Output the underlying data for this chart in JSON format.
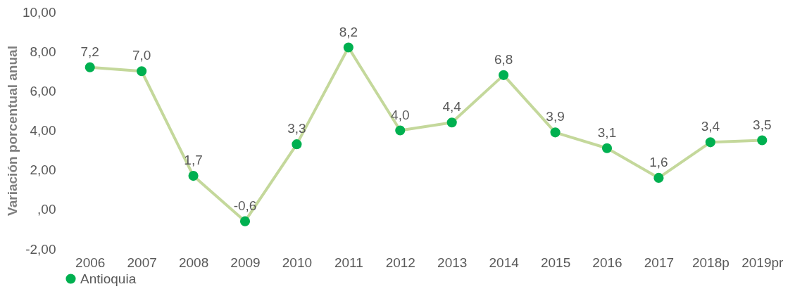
{
  "chart_data": {
    "type": "line",
    "ylabel": "Variación porcentual anual",
    "categories": [
      "2006",
      "2007",
      "2008",
      "2009",
      "2010",
      "2011",
      "2012",
      "2013",
      "2014",
      "2015",
      "2016",
      "2017",
      "2018p",
      "2019pr"
    ],
    "series": [
      {
        "name": "Antioquia",
        "color": "#c4d89b",
        "colors": [
          "#00b050",
          "#00b050",
          "#00b050",
          "#00b050",
          "#00b050",
          "#00b050",
          "#00b050",
          "#00b050",
          "#00b050",
          "#00b050",
          "#00b050",
          "#00b050",
          "#00b050",
          "#00b050"
        ],
        "values": [
          7.2,
          7.0,
          1.7,
          -0.6,
          3.3,
          8.2,
          4.0,
          4.4,
          6.8,
          3.9,
          3.1,
          1.6,
          3.4,
          3.5
        ],
        "value_labels": [
          "7,2",
          "7,0",
          "1,7",
          "-0,6",
          "3,3",
          "8,2",
          "4,0",
          "4,4",
          "6,8",
          "3,9",
          "3,1",
          "1,6",
          "3,4",
          "3,5"
        ]
      }
    ],
    "ylim": [
      -2,
      10
    ],
    "yticks": [
      {
        "value": -2,
        "label": "-2,00"
      },
      {
        "value": 0,
        "label": ",00"
      },
      {
        "value": 2,
        "label": "2,00"
      },
      {
        "value": 4,
        "label": "4,00"
      },
      {
        "value": 6,
        "label": "6,00"
      },
      {
        "value": 8,
        "label": "8,00"
      },
      {
        "value": 10,
        "label": "10,00"
      }
    ],
    "grid": false,
    "legend": "bottom",
    "marker": "circle",
    "line_style": "solid"
  }
}
